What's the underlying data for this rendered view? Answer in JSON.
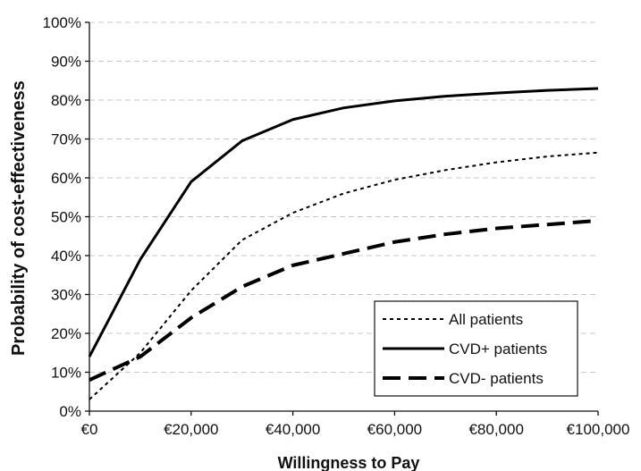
{
  "chart_data": {
    "type": "line",
    "title": "",
    "xlabel": "Willingness to Pay",
    "ylabel": "Probability of cost-effectiveness",
    "x": [
      0,
      10000,
      20000,
      30000,
      40000,
      50000,
      60000,
      70000,
      80000,
      90000,
      100000
    ],
    "xlim": [
      0,
      100000
    ],
    "ylim": [
      0,
      100
    ],
    "x_tick_values": [
      0,
      20000,
      40000,
      60000,
      80000,
      100000
    ],
    "x_tick_labels": [
      "€0",
      "€20,000",
      "€40,000",
      "€60,000",
      "€80,000",
      "€100,000"
    ],
    "y_tick_values": [
      0,
      10,
      20,
      30,
      40,
      50,
      60,
      70,
      80,
      90,
      100
    ],
    "y_tick_labels": [
      "0%",
      "10%",
      "20%",
      "30%",
      "40%",
      "50%",
      "60%",
      "70%",
      "80%",
      "90%",
      "100%"
    ],
    "grid": "horizontal dashed",
    "legend_position": "bottom-right",
    "series": [
      {
        "name": "All patients",
        "style": "dotted",
        "color": "#000000",
        "values": [
          3,
          15,
          31,
          44,
          51,
          56,
          59.5,
          62,
          64,
          65.5,
          66.5
        ]
      },
      {
        "name": "CVD+ patients",
        "style": "solid",
        "color": "#000000",
        "values": [
          14,
          39,
          59,
          69.5,
          75,
          78,
          79.8,
          81,
          81.8,
          82.5,
          83
        ]
      },
      {
        "name": "CVD- patients",
        "style": "dashed",
        "color": "#000000",
        "values": [
          8,
          14,
          24,
          32,
          37.5,
          40.5,
          43.5,
          45.5,
          47,
          48,
          49
        ]
      }
    ]
  }
}
